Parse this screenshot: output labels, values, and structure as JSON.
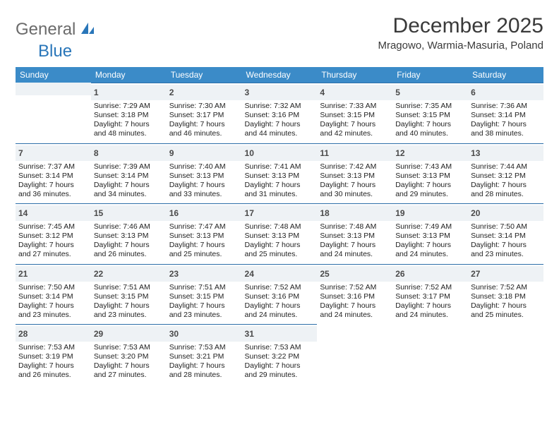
{
  "brand": {
    "part1": "General",
    "part2": "Blue"
  },
  "title": "December 2025",
  "location": "Mragowo, Warmia-Masuria, Poland",
  "day_headers": [
    "Sunday",
    "Monday",
    "Tuesday",
    "Wednesday",
    "Thursday",
    "Friday",
    "Saturday"
  ],
  "colors": {
    "header_bg": "#3b8bc8",
    "header_text": "#ffffff",
    "rule": "#2d6fa8",
    "daynum_bg": "#eef2f5",
    "logo_gray": "#6b6b6b",
    "logo_blue": "#2976b9"
  },
  "weeks": [
    [
      {
        "n": "",
        "lines": []
      },
      {
        "n": "1",
        "lines": [
          "Sunrise: 7:29 AM",
          "Sunset: 3:18 PM",
          "Daylight: 7 hours",
          "and 48 minutes."
        ]
      },
      {
        "n": "2",
        "lines": [
          "Sunrise: 7:30 AM",
          "Sunset: 3:17 PM",
          "Daylight: 7 hours",
          "and 46 minutes."
        ]
      },
      {
        "n": "3",
        "lines": [
          "Sunrise: 7:32 AM",
          "Sunset: 3:16 PM",
          "Daylight: 7 hours",
          "and 44 minutes."
        ]
      },
      {
        "n": "4",
        "lines": [
          "Sunrise: 7:33 AM",
          "Sunset: 3:15 PM",
          "Daylight: 7 hours",
          "and 42 minutes."
        ]
      },
      {
        "n": "5",
        "lines": [
          "Sunrise: 7:35 AM",
          "Sunset: 3:15 PM",
          "Daylight: 7 hours",
          "and 40 minutes."
        ]
      },
      {
        "n": "6",
        "lines": [
          "Sunrise: 7:36 AM",
          "Sunset: 3:14 PM",
          "Daylight: 7 hours",
          "and 38 minutes."
        ]
      }
    ],
    [
      {
        "n": "7",
        "lines": [
          "Sunrise: 7:37 AM",
          "Sunset: 3:14 PM",
          "Daylight: 7 hours",
          "and 36 minutes."
        ]
      },
      {
        "n": "8",
        "lines": [
          "Sunrise: 7:39 AM",
          "Sunset: 3:14 PM",
          "Daylight: 7 hours",
          "and 34 minutes."
        ]
      },
      {
        "n": "9",
        "lines": [
          "Sunrise: 7:40 AM",
          "Sunset: 3:13 PM",
          "Daylight: 7 hours",
          "and 33 minutes."
        ]
      },
      {
        "n": "10",
        "lines": [
          "Sunrise: 7:41 AM",
          "Sunset: 3:13 PM",
          "Daylight: 7 hours",
          "and 31 minutes."
        ]
      },
      {
        "n": "11",
        "lines": [
          "Sunrise: 7:42 AM",
          "Sunset: 3:13 PM",
          "Daylight: 7 hours",
          "and 30 minutes."
        ]
      },
      {
        "n": "12",
        "lines": [
          "Sunrise: 7:43 AM",
          "Sunset: 3:13 PM",
          "Daylight: 7 hours",
          "and 29 minutes."
        ]
      },
      {
        "n": "13",
        "lines": [
          "Sunrise: 7:44 AM",
          "Sunset: 3:12 PM",
          "Daylight: 7 hours",
          "and 28 minutes."
        ]
      }
    ],
    [
      {
        "n": "14",
        "lines": [
          "Sunrise: 7:45 AM",
          "Sunset: 3:12 PM",
          "Daylight: 7 hours",
          "and 27 minutes."
        ]
      },
      {
        "n": "15",
        "lines": [
          "Sunrise: 7:46 AM",
          "Sunset: 3:13 PM",
          "Daylight: 7 hours",
          "and 26 minutes."
        ]
      },
      {
        "n": "16",
        "lines": [
          "Sunrise: 7:47 AM",
          "Sunset: 3:13 PM",
          "Daylight: 7 hours",
          "and 25 minutes."
        ]
      },
      {
        "n": "17",
        "lines": [
          "Sunrise: 7:48 AM",
          "Sunset: 3:13 PM",
          "Daylight: 7 hours",
          "and 25 minutes."
        ]
      },
      {
        "n": "18",
        "lines": [
          "Sunrise: 7:48 AM",
          "Sunset: 3:13 PM",
          "Daylight: 7 hours",
          "and 24 minutes."
        ]
      },
      {
        "n": "19",
        "lines": [
          "Sunrise: 7:49 AM",
          "Sunset: 3:13 PM",
          "Daylight: 7 hours",
          "and 24 minutes."
        ]
      },
      {
        "n": "20",
        "lines": [
          "Sunrise: 7:50 AM",
          "Sunset: 3:14 PM",
          "Daylight: 7 hours",
          "and 23 minutes."
        ]
      }
    ],
    [
      {
        "n": "21",
        "lines": [
          "Sunrise: 7:50 AM",
          "Sunset: 3:14 PM",
          "Daylight: 7 hours",
          "and 23 minutes."
        ]
      },
      {
        "n": "22",
        "lines": [
          "Sunrise: 7:51 AM",
          "Sunset: 3:15 PM",
          "Daylight: 7 hours",
          "and 23 minutes."
        ]
      },
      {
        "n": "23",
        "lines": [
          "Sunrise: 7:51 AM",
          "Sunset: 3:15 PM",
          "Daylight: 7 hours",
          "and 23 minutes."
        ]
      },
      {
        "n": "24",
        "lines": [
          "Sunrise: 7:52 AM",
          "Sunset: 3:16 PM",
          "Daylight: 7 hours",
          "and 24 minutes."
        ]
      },
      {
        "n": "25",
        "lines": [
          "Sunrise: 7:52 AM",
          "Sunset: 3:16 PM",
          "Daylight: 7 hours",
          "and 24 minutes."
        ]
      },
      {
        "n": "26",
        "lines": [
          "Sunrise: 7:52 AM",
          "Sunset: 3:17 PM",
          "Daylight: 7 hours",
          "and 24 minutes."
        ]
      },
      {
        "n": "27",
        "lines": [
          "Sunrise: 7:52 AM",
          "Sunset: 3:18 PM",
          "Daylight: 7 hours",
          "and 25 minutes."
        ]
      }
    ],
    [
      {
        "n": "28",
        "lines": [
          "Sunrise: 7:53 AM",
          "Sunset: 3:19 PM",
          "Daylight: 7 hours",
          "and 26 minutes."
        ]
      },
      {
        "n": "29",
        "lines": [
          "Sunrise: 7:53 AM",
          "Sunset: 3:20 PM",
          "Daylight: 7 hours",
          "and 27 minutes."
        ]
      },
      {
        "n": "30",
        "lines": [
          "Sunrise: 7:53 AM",
          "Sunset: 3:21 PM",
          "Daylight: 7 hours",
          "and 28 minutes."
        ]
      },
      {
        "n": "31",
        "lines": [
          "Sunrise: 7:53 AM",
          "Sunset: 3:22 PM",
          "Daylight: 7 hours",
          "and 29 minutes."
        ]
      },
      {
        "n": "",
        "lines": []
      },
      {
        "n": "",
        "lines": []
      },
      {
        "n": "",
        "lines": []
      }
    ]
  ]
}
